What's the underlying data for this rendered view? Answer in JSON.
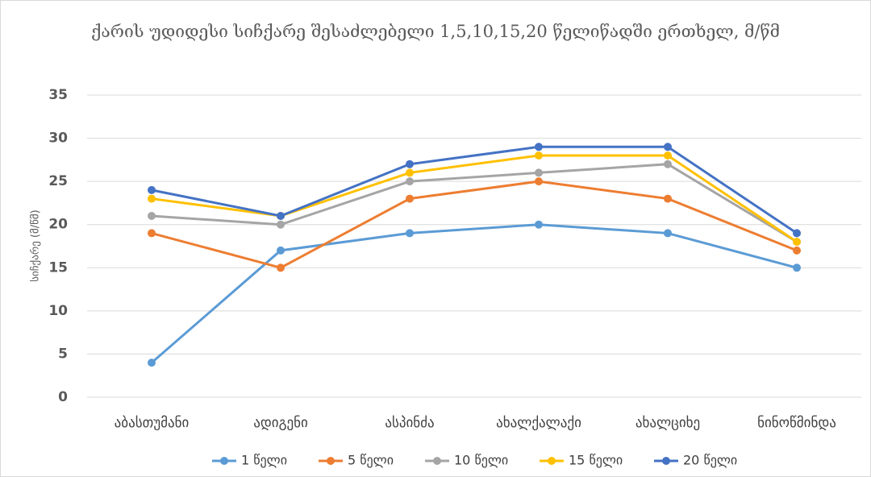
{
  "chart_data": {
    "type": "line",
    "title": "ქარის უდიდესი სიჩქარე შესაძლებელი 1,5,10,15,20 წელიწადში ერთხელ, მ/წმ",
    "y_label": "სიჩქარე (მ/წმ)",
    "categories": [
      "აბასთუმანი",
      "ადიგენი",
      "ასპინძა",
      "ახალქალაქი",
      "ახალციხე",
      "ნინოწმინდა"
    ],
    "series": [
      {
        "name": "1 წელი",
        "color": "#5b9bd5",
        "values": [
          4,
          17,
          19,
          20,
          19,
          15
        ]
      },
      {
        "name": "5 წელი",
        "color": "#ed7d31",
        "values": [
          19,
          15,
          23,
          25,
          23,
          17
        ]
      },
      {
        "name": "10 წელი",
        "color": "#a5a5a5",
        "values": [
          21,
          20,
          25,
          26,
          27,
          18
        ]
      },
      {
        "name": "15 წელი",
        "color": "#ffc000",
        "values": [
          23,
          21,
          26,
          28,
          28,
          18
        ]
      },
      {
        "name": "20 წელი",
        "color": "#4472c4",
        "values": [
          24,
          21,
          27,
          29,
          29,
          19
        ]
      }
    ],
    "ylim": [
      0,
      35
    ],
    "yticks": [
      0,
      5,
      10,
      15,
      20,
      25,
      30,
      35
    ],
    "grid": true,
    "legend": "bottom"
  }
}
